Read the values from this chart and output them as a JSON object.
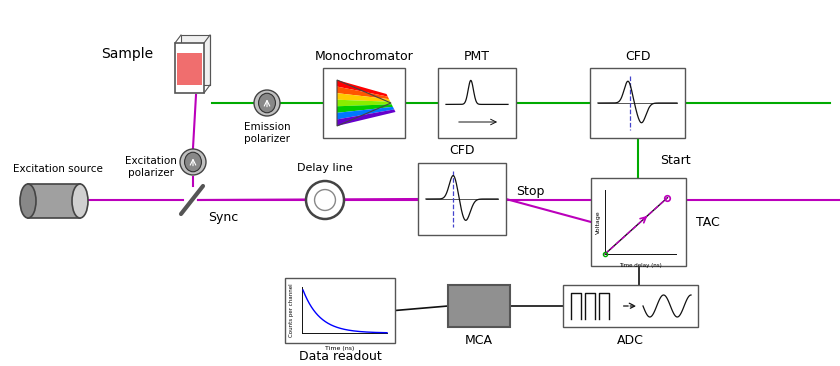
{
  "fig_w": 8.4,
  "fig_h": 3.66,
  "dpi": 100,
  "green": "#00aa00",
  "purple": "#bb00bb",
  "blue_dash": "#4444cc",
  "black": "#111111",
  "gray_cyl": "#888888",
  "gray_box": "#aaaaaa",
  "red_sample": "#ee5555",
  "edge_color": "#555555",
  "labels": {
    "excitation_source": "Excitation source",
    "excitation_polarizer": "Excitation\npolarizer",
    "sample": "Sample",
    "emission_polarizer": "Emission\npolarizer",
    "monochromator": "Monochromator",
    "pmt": "PMT",
    "cfd_top": "CFD",
    "cfd_bottom": "CFD",
    "delay_line": "Delay line",
    "sync": "Sync",
    "stop": "Stop",
    "start": "Start",
    "tac": "TAC",
    "mca": "MCA",
    "adc": "ADC",
    "data_readout": "Data readout",
    "time_delay_ns": "Time delay (ns)",
    "voltage": "Voltage",
    "time_ns": "Time (ns)",
    "counts_per_channel": "Counts per channel"
  },
  "rainbow_colors": [
    "#ff0000",
    "#ff5500",
    "#ffcc00",
    "#88ee00",
    "#00cc00",
    "#0077ff",
    "#6600cc"
  ]
}
